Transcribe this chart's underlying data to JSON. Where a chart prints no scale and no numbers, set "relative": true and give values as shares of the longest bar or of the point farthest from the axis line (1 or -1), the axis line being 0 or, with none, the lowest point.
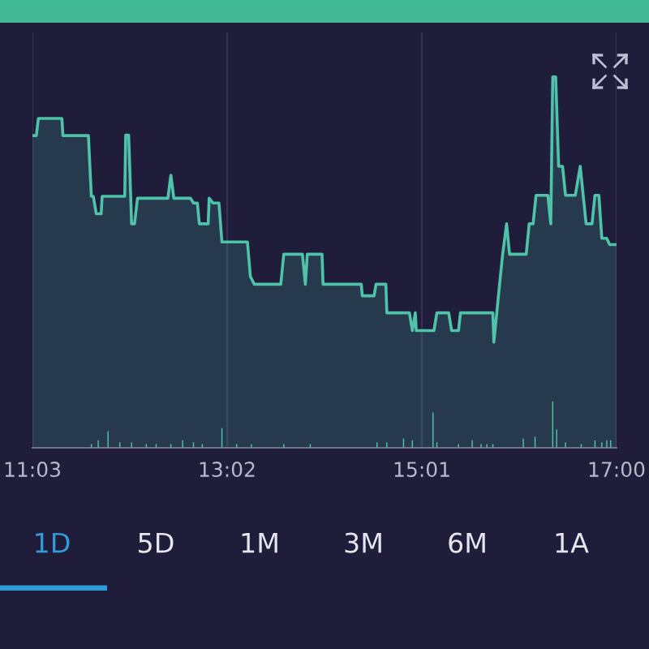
{
  "chart_data": {
    "type": "area",
    "relative": true,
    "grid": "x",
    "xlim": [
      11.05,
      17.0
    ],
    "xticks": [
      {
        "value": 11.05,
        "label": "11:03"
      },
      {
        "value": 13.033,
        "label": "13:02"
      },
      {
        "value": 15.017,
        "label": "15:01"
      },
      {
        "value": 17.0,
        "label": "17:00"
      }
    ],
    "series": [
      {
        "color": "#4fc3a9",
        "x": [
          11.05,
          11.09,
          11.11,
          11.35,
          11.36,
          11.62,
          11.65,
          11.67,
          11.7,
          11.75,
          11.76,
          11.99,
          12.0,
          12.03,
          12.06,
          12.09,
          12.12,
          12.43,
          12.46,
          12.49,
          12.66,
          12.69,
          12.73,
          12.75,
          12.84,
          12.85,
          12.89,
          12.95,
          12.98,
          13.24,
          13.27,
          13.31,
          13.58,
          13.61,
          13.8,
          13.83,
          13.85,
          14.0,
          14.01,
          14.4,
          14.41,
          14.53,
          14.55,
          14.65,
          14.66,
          14.89,
          14.92,
          14.95,
          14.96,
          15.14,
          15.17,
          15.29,
          15.32,
          15.39,
          15.41,
          15.74,
          15.75,
          15.78,
          15.81,
          15.84,
          15.88,
          15.91,
          16.08,
          16.11,
          16.15,
          16.18,
          16.3,
          16.33,
          16.35,
          16.38,
          16.41,
          16.45,
          16.48,
          16.58,
          16.63,
          16.69,
          16.75,
          16.78,
          16.82,
          16.85,
          16.9,
          16.93,
          17.0
        ],
        "values": [
          0.842,
          0.842,
          0.888,
          0.888,
          0.842,
          0.842,
          0.678,
          0.678,
          0.631,
          0.631,
          0.678,
          0.678,
          0.843,
          0.843,
          0.604,
          0.604,
          0.673,
          0.673,
          0.735,
          0.673,
          0.673,
          0.66,
          0.66,
          0.604,
          0.604,
          0.673,
          0.66,
          0.66,
          0.555,
          0.555,
          0.462,
          0.441,
          0.441,
          0.522,
          0.522,
          0.441,
          0.522,
          0.522,
          0.441,
          0.441,
          0.41,
          0.41,
          0.441,
          0.441,
          0.364,
          0.364,
          0.316,
          0.364,
          0.316,
          0.316,
          0.364,
          0.364,
          0.316,
          0.316,
          0.364,
          0.364,
          0.285,
          0.364,
          0.445,
          0.522,
          0.604,
          0.522,
          0.522,
          0.604,
          0.604,
          0.681,
          0.681,
          0.604,
          1.0,
          1.0,
          0.759,
          0.759,
          0.681,
          0.681,
          0.759,
          0.604,
          0.604,
          0.681,
          0.681,
          0.565,
          0.565,
          0.548,
          0.548
        ]
      },
      {
        "type": "bar",
        "color": "#4fc3a9",
        "x": [
          11.65,
          11.72,
          11.82,
          11.94,
          12.06,
          12.21,
          12.31,
          12.46,
          12.58,
          12.69,
          12.78,
          12.98,
          13.13,
          13.28,
          13.61,
          13.88,
          14.56,
          14.66,
          14.83,
          14.92,
          15.13,
          15.17,
          15.39,
          15.53,
          15.62,
          15.68,
          15.74,
          16.05,
          16.17,
          16.35,
          16.39,
          16.48,
          16.64,
          16.78,
          16.85,
          16.9,
          16.94
        ],
        "values": [
          0.01,
          0.02,
          0.045,
          0.015,
          0.015,
          0.01,
          0.01,
          0.01,
          0.02,
          0.015,
          0.01,
          0.053,
          0.01,
          0.01,
          0.01,
          0.01,
          0.015,
          0.015,
          0.025,
          0.02,
          0.095,
          0.015,
          0.01,
          0.02,
          0.01,
          0.01,
          0.01,
          0.025,
          0.03,
          0.125,
          0.05,
          0.015,
          0.01,
          0.02,
          0.015,
          0.02,
          0.02
        ]
      }
    ],
    "annotations": [
      "1D",
      "5D",
      "1M",
      "3M",
      "6M",
      "1A"
    ]
  }
}
